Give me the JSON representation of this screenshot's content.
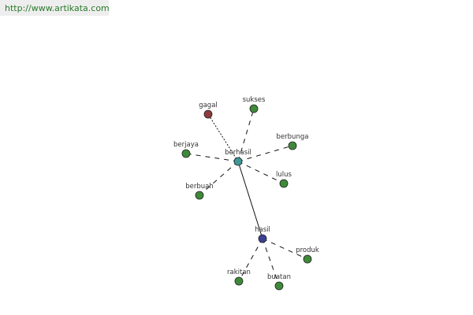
{
  "source_link": "http://www.artikata.com",
  "colors": {
    "center": "#3f9898",
    "secondary": "#3b4193",
    "antonym": "#8e3a3e",
    "related": "#3f8a3a"
  },
  "nodes": [
    {
      "id": "berhasil",
      "label": "berhasil",
      "kind": "center"
    },
    {
      "id": "gagal",
      "label": "gagal",
      "kind": "antonym"
    },
    {
      "id": "sukses",
      "label": "sukses",
      "kind": "related"
    },
    {
      "id": "berbunga",
      "label": "berbunga",
      "kind": "related"
    },
    {
      "id": "berjaya",
      "label": "berjaya",
      "kind": "related"
    },
    {
      "id": "lulus",
      "label": "lulus",
      "kind": "related"
    },
    {
      "id": "berbuah",
      "label": "berbuah",
      "kind": "related"
    },
    {
      "id": "hasil",
      "label": "hasil",
      "kind": "secondary"
    },
    {
      "id": "produk",
      "label": "produk",
      "kind": "related"
    },
    {
      "id": "rakitan",
      "label": "rakitan",
      "kind": "related"
    },
    {
      "id": "buatan",
      "label": "buatan",
      "kind": "related"
    }
  ],
  "edges": [
    {
      "from": "berhasil",
      "to": "gagal",
      "style": "dotted"
    },
    {
      "from": "berhasil",
      "to": "sukses",
      "style": "dashed"
    },
    {
      "from": "berhasil",
      "to": "berbunga",
      "style": "dashed"
    },
    {
      "from": "berhasil",
      "to": "berjaya",
      "style": "dashed"
    },
    {
      "from": "berhasil",
      "to": "lulus",
      "style": "dashed"
    },
    {
      "from": "berhasil",
      "to": "berbuah",
      "style": "dashed"
    },
    {
      "from": "berhasil",
      "to": "hasil",
      "style": "solid"
    },
    {
      "from": "hasil",
      "to": "produk",
      "style": "dashed"
    },
    {
      "from": "hasil",
      "to": "rakitan",
      "style": "dashed"
    },
    {
      "from": "hasil",
      "to": "buatan",
      "style": "dashed"
    }
  ]
}
